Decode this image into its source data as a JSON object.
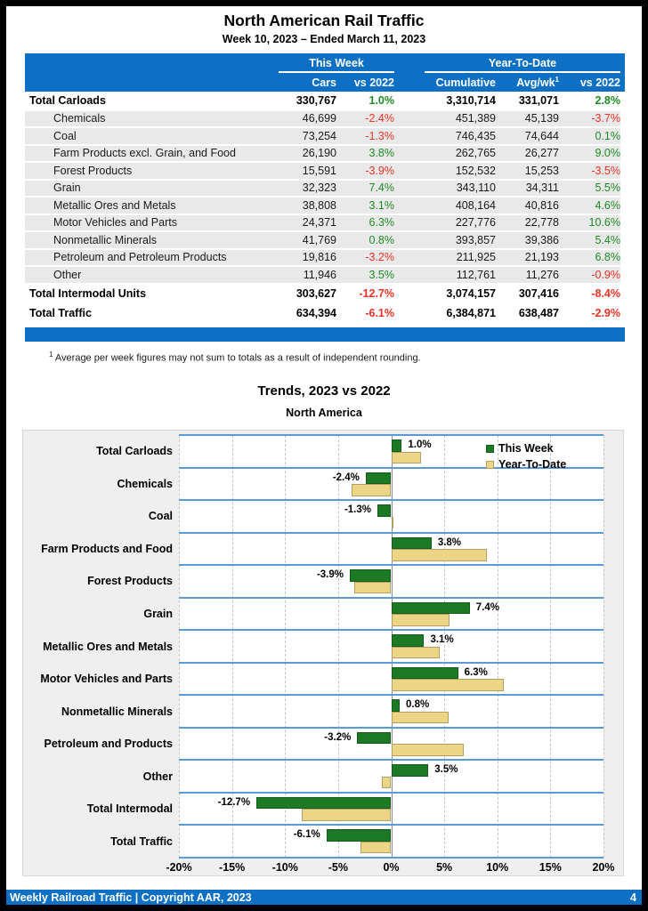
{
  "page": {
    "title": "North American Rail Traffic",
    "subtitle": "Week 10, 2023 – Ended March 11, 2023",
    "footnote_sup": "1",
    "footnote_text": "Average per week figures may not sum to totals as a result of independent rounding.",
    "footer": {
      "left_text": "Weekly Railroad Traffic | Copyright AAR, 2023",
      "page_number": "4"
    }
  },
  "table": {
    "group_headers": {
      "this_week": "This Week",
      "year_to_date": "Year-To-Date"
    },
    "col_headers": {
      "cars": "Cars",
      "wk_vs": "vs 2022",
      "cumulative": "Cumulative",
      "avg_wk": "Avg/wk",
      "avg_wk_sup": "1",
      "ytd_vs": "vs 2022"
    },
    "rows": [
      {
        "label": "Total Carloads",
        "cars": "330,767",
        "wk": "1.0%",
        "cum": "3,310,714",
        "avg": "331,071",
        "ytd": "2.8%",
        "style": "total"
      },
      {
        "label": "Chemicals",
        "cars": "46,699",
        "wk": "-2.4%",
        "cum": "451,389",
        "avg": "45,139",
        "ytd": "-3.7%",
        "style": "sub"
      },
      {
        "label": "Coal",
        "cars": "73,254",
        "wk": "-1.3%",
        "cum": "746,435",
        "avg": "74,644",
        "ytd": "0.1%",
        "style": "sub"
      },
      {
        "label": "Farm Products excl. Grain, and Food",
        "cars": "26,190",
        "wk": "3.8%",
        "cum": "262,765",
        "avg": "26,277",
        "ytd": "9.0%",
        "style": "sub"
      },
      {
        "label": "Forest Products",
        "cars": "15,591",
        "wk": "-3.9%",
        "cum": "152,532",
        "avg": "15,253",
        "ytd": "-3.5%",
        "style": "sub"
      },
      {
        "label": "Grain",
        "cars": "32,323",
        "wk": "7.4%",
        "cum": "343,110",
        "avg": "34,311",
        "ytd": "5.5%",
        "style": "sub"
      },
      {
        "label": "Metallic Ores and Metals",
        "cars": "38,808",
        "wk": "3.1%",
        "cum": "408,164",
        "avg": "40,816",
        "ytd": "4.6%",
        "style": "sub"
      },
      {
        "label": "Motor Vehicles and Parts",
        "cars": "24,371",
        "wk": "6.3%",
        "cum": "227,776",
        "avg": "22,778",
        "ytd": "10.6%",
        "style": "sub"
      },
      {
        "label": "Nonmetallic Minerals",
        "cars": "41,769",
        "wk": "0.8%",
        "cum": "393,857",
        "avg": "39,386",
        "ytd": "5.4%",
        "style": "sub"
      },
      {
        "label": "Petroleum and Petroleum Products",
        "cars": "19,816",
        "wk": "-3.2%",
        "cum": "211,925",
        "avg": "21,193",
        "ytd": "6.8%",
        "style": "sub"
      },
      {
        "label": "Other",
        "cars": "11,946",
        "wk": "3.5%",
        "cum": "112,761",
        "avg": "11,276",
        "ytd": "-0.9%",
        "style": "sub"
      },
      {
        "label": "Total Intermodal Units",
        "cars": "303,627",
        "wk": "-12.7%",
        "cum": "3,074,157",
        "avg": "307,416",
        "ytd": "-8.4%",
        "style": "grand"
      },
      {
        "label": "Total Traffic",
        "cars": "634,394",
        "wk": "-6.1%",
        "cum": "6,384,871",
        "avg": "638,487",
        "ytd": "-2.9%",
        "style": "grand"
      }
    ]
  },
  "chart_data": {
    "type": "bar",
    "orientation": "horizontal",
    "title": "Trends, 2023 vs 2022",
    "subtitle": "North America",
    "categories": [
      "Total Carloads",
      "Chemicals",
      "Coal",
      "Farm Products and Food",
      "Forest Products",
      "Grain",
      "Metallic Ores and Metals",
      "Motor Vehicles and Parts",
      "Nonmetallic Minerals",
      "Petroleum and Products",
      "Other",
      "Total Intermodal",
      "Total Traffic"
    ],
    "series": [
      {
        "name": "This Week",
        "color": "#1d7a24",
        "values": [
          1.0,
          -2.4,
          -1.3,
          3.8,
          -3.9,
          7.4,
          3.1,
          6.3,
          0.8,
          -3.2,
          3.5,
          -12.7,
          -6.1
        ]
      },
      {
        "name": "Year-To-Date",
        "color": "#ecd584",
        "values": [
          2.8,
          -3.7,
          0.1,
          9.0,
          -3.5,
          5.5,
          4.6,
          10.6,
          5.4,
          6.8,
          -0.9,
          -8.4,
          -2.9
        ]
      }
    ],
    "bar_labels": [
      "1.0%",
      "-2.4%",
      "-1.3%",
      "3.8%",
      "-3.9%",
      "7.4%",
      "3.1%",
      "6.3%",
      "0.8%",
      "-3.2%",
      "3.5%",
      "-12.7%",
      "-6.1%"
    ],
    "xlim": [
      -20,
      20
    ],
    "x_tick_labels": [
      "-20%",
      "-15%",
      "-10%",
      "-5%",
      "0%",
      "5%",
      "10%",
      "15%",
      "20%"
    ],
    "grid": "vertical dashed every 5%",
    "legend_position": "top-right"
  },
  "colors": {
    "header_blue": "#0d70c4",
    "separator_blue": "#5b9bd5",
    "positive_green": "#1f8b24",
    "negative_red": "#ea3323",
    "bar_green": "#1d7a24",
    "bar_tan": "#ecd584",
    "stripe_gray": "#e9e9e9"
  }
}
